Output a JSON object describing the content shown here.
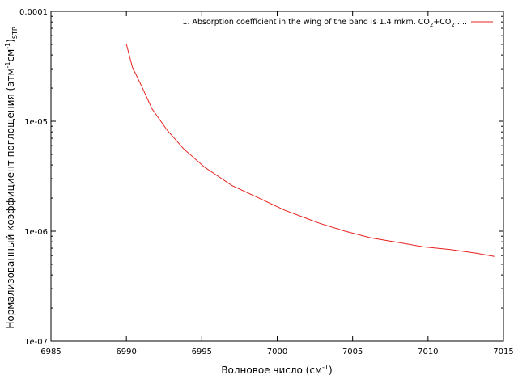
{
  "chart_data": {
    "type": "line",
    "xlabel_main": "Волновое число (см",
    "xlabel_sup": "-1",
    "xlabel_end": ")",
    "ylabel_main": "Нормализованный коэффициент поглощения (атм",
    "ylabel_sup1": "-1",
    "ylabel_mid": "см",
    "ylabel_sup2": "-1",
    "ylabel_end": ")",
    "ylabel_sub": "STP",
    "xlim": [
      6985,
      7015
    ],
    "ylim": [
      1e-07,
      0.0001
    ],
    "yscale": "log",
    "grid": false,
    "legend_placement": "top-right",
    "x_ticks": [
      6985,
      6990,
      6995,
      7000,
      7005,
      7010,
      7015
    ],
    "x_tick_labels": [
      "6985",
      "6990",
      "6995",
      "7000",
      "7005",
      "7010",
      "7015"
    ],
    "y_ticks": [
      1e-07,
      1e-06,
      1e-05,
      0.0001
    ],
    "y_tick_labels": [
      "1e-07",
      "1e-06",
      "1e-05",
      "0.0001"
    ],
    "series": [
      {
        "name_main": "1. Absorption coefficient in the wing of the band is 1.4 mkm. CO",
        "name_sub1": "2",
        "name_mid": "+CO",
        "name_sub2": "2",
        "name_end": ".....",
        "color": "#e8211d",
        "x": [
          6990.0,
          6990.4,
          6991.0,
          6991.7,
          6992.7,
          6993.8,
          6995.2,
          6997.0,
          6998.8,
          7000.5,
          7002.8,
          7004.5,
          7006.2,
          7008.0,
          7009.7,
          7011.5,
          7013.2,
          7014.4
        ],
        "y": [
          5e-05,
          3.1e-05,
          2.1e-05,
          1.3e-05,
          8.3e-06,
          5.6e-06,
          3.8e-06,
          2.6e-06,
          2e-06,
          1.55e-06,
          1.18e-06,
          1e-06,
          8.7e-07,
          7.9e-07,
          7.2e-07,
          6.8e-07,
          6.3e-07,
          5.9e-07
        ]
      }
    ]
  }
}
